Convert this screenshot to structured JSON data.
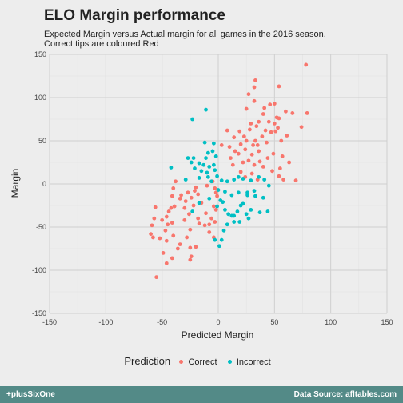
{
  "chart_data": {
    "type": "scatter",
    "title": "ELO Margin performance",
    "subtitle_line1": "Expected Margin versus Actual margin for all games in the 2016 season.",
    "subtitle_line2": "Correct tips are coloured Red",
    "xlabel": "Predicted Margin",
    "ylabel": "Margin",
    "xlim": [
      -150,
      150
    ],
    "ylim": [
      -150,
      150
    ],
    "x_ticks": [
      -150,
      -100,
      -50,
      0,
      50,
      100,
      150
    ],
    "y_ticks": [
      -150,
      -100,
      -50,
      0,
      50,
      100,
      150
    ],
    "grid": true,
    "legend_position": "bottom",
    "legend_title": "Prediction",
    "series": [
      {
        "name": "Correct",
        "color": "#f8766d",
        "points": [
          [
            78,
            138
          ],
          [
            33,
            120
          ],
          [
            32,
            112
          ],
          [
            54,
            113
          ],
          [
            27,
            104
          ],
          [
            32,
            96
          ],
          [
            46,
            92
          ],
          [
            50,
            93
          ],
          [
            66,
            82
          ],
          [
            79,
            82
          ],
          [
            60,
            84
          ],
          [
            41,
            88
          ],
          [
            25,
            87
          ],
          [
            52,
            77
          ],
          [
            54,
            76
          ],
          [
            40,
            81
          ],
          [
            45,
            72
          ],
          [
            36,
            72
          ],
          [
            29,
            70
          ],
          [
            50,
            70
          ],
          [
            53,
            65
          ],
          [
            34,
            67
          ],
          [
            42,
            62
          ],
          [
            47,
            60
          ],
          [
            74,
            66
          ],
          [
            28,
            63
          ],
          [
            19,
            61
          ],
          [
            23,
            55
          ],
          [
            39,
            55
          ],
          [
            51,
            61
          ],
          [
            61,
            56
          ],
          [
            8,
            62
          ],
          [
            14,
            54
          ],
          [
            25,
            50
          ],
          [
            33,
            50
          ],
          [
            43,
            48
          ],
          [
            31,
            45
          ],
          [
            20,
            46
          ],
          [
            10,
            43
          ],
          [
            35,
            45
          ],
          [
            56,
            50
          ],
          [
            3,
            45
          ],
          [
            15,
            38
          ],
          [
            24,
            40
          ],
          [
            36,
            38
          ],
          [
            49,
            35
          ],
          [
            30,
            34
          ],
          [
            18,
            35
          ],
          [
            44,
            30
          ],
          [
            11,
            30
          ],
          [
            27,
            27
          ],
          [
            37,
            26
          ],
          [
            57,
            32
          ],
          [
            22,
            25
          ],
          [
            32,
            22
          ],
          [
            13,
            22
          ],
          [
            40,
            20
          ],
          [
            55,
            18
          ],
          [
            63,
            25
          ],
          [
            48,
            15
          ],
          [
            30,
            12
          ],
          [
            20,
            14
          ],
          [
            54,
            9
          ],
          [
            58,
            5
          ],
          [
            69,
            4
          ],
          [
            35,
            5
          ],
          [
            24,
            8
          ],
          [
            -5,
            3
          ],
          [
            -3,
            -5
          ],
          [
            -2,
            -10
          ],
          [
            -1,
            -14
          ],
          [
            -2,
            -30
          ],
          [
            -4,
            -26
          ],
          [
            -15,
            -22
          ],
          [
            -18,
            -12
          ],
          [
            -21,
            -8
          ],
          [
            -27,
            -10
          ],
          [
            -24,
            -16
          ],
          [
            -29,
            -20
          ],
          [
            -34,
            -17
          ],
          [
            -40,
            -5
          ],
          [
            -38,
            3
          ],
          [
            -30,
            -28
          ],
          [
            -26,
            -35
          ],
          [
            -18,
            -40
          ],
          [
            -11,
            -34
          ],
          [
            -6,
            -40
          ],
          [
            -3,
            -44
          ],
          [
            -8,
            -47
          ],
          [
            -12,
            -48
          ],
          [
            -25,
            -53
          ],
          [
            -41,
            -45
          ],
          [
            -45,
            -47
          ],
          [
            -46,
            -38
          ],
          [
            -56,
            -27
          ],
          [
            -50,
            -42
          ],
          [
            -47,
            -54
          ],
          [
            -52,
            -63
          ],
          [
            -46,
            -66
          ],
          [
            -40,
            -60
          ],
          [
            -34,
            -70
          ],
          [
            -28,
            -62
          ],
          [
            -25,
            -74
          ],
          [
            -20,
            -73
          ],
          [
            -24,
            -84
          ],
          [
            -25,
            -88
          ],
          [
            -36,
            -75
          ],
          [
            -41,
            -86
          ],
          [
            -46,
            -92
          ],
          [
            -49,
            -80
          ],
          [
            -60,
            -58
          ],
          [
            -59,
            -48
          ],
          [
            -57,
            -40
          ],
          [
            -58,
            -62
          ],
          [
            -55,
            -108
          ],
          [
            -8,
            -56
          ],
          [
            -4,
            -62
          ],
          [
            -17,
            -46
          ],
          [
            -30,
            -42
          ],
          [
            -22,
            -25
          ],
          [
            -44,
            -32
          ],
          [
            -42,
            -28
          ],
          [
            -10,
            -2
          ],
          [
            -20,
            -4
          ],
          [
            -33,
            -13
          ],
          [
            -41,
            -14
          ],
          [
            -39,
            -26
          ]
        ]
      },
      {
        "name": "Incorrect",
        "color": "#00bfc4",
        "points": [
          [
            -11,
            86
          ],
          [
            -23,
            75
          ],
          [
            -12,
            48
          ],
          [
            -4,
            47
          ],
          [
            -5,
            38
          ],
          [
            -9,
            36
          ],
          [
            -2,
            32
          ],
          [
            -11,
            30
          ],
          [
            -22,
            30
          ],
          [
            -27,
            30
          ],
          [
            -24,
            25
          ],
          [
            -17,
            24
          ],
          [
            -13,
            22
          ],
          [
            -8,
            20
          ],
          [
            -4,
            22
          ],
          [
            -42,
            19
          ],
          [
            -21,
            18
          ],
          [
            -15,
            15
          ],
          [
            -10,
            13
          ],
          [
            -3,
            16
          ],
          [
            -9,
            8
          ],
          [
            -17,
            7
          ],
          [
            -29,
            5
          ],
          [
            -6,
            3
          ],
          [
            -1,
            9
          ],
          [
            3,
            4
          ],
          [
            8,
            3
          ],
          [
            14,
            5
          ],
          [
            18,
            8
          ],
          [
            22,
            6
          ],
          [
            29,
            4
          ],
          [
            36,
            8
          ],
          [
            41,
            5
          ],
          [
            45,
            -2
          ],
          [
            32,
            -8
          ],
          [
            26,
            -10
          ],
          [
            18,
            -10
          ],
          [
            12,
            -13
          ],
          [
            6,
            -9
          ],
          [
            2,
            -19
          ],
          [
            6,
            -30
          ],
          [
            9,
            -35
          ],
          [
            12,
            -37
          ],
          [
            14,
            -37
          ],
          [
            17,
            -32
          ],
          [
            20,
            -25
          ],
          [
            22,
            -23
          ],
          [
            26,
            -13
          ],
          [
            33,
            -14
          ],
          [
            40,
            -16
          ],
          [
            29,
            -30
          ],
          [
            37,
            -33
          ],
          [
            44,
            -32
          ],
          [
            25,
            -35
          ],
          [
            27,
            -40
          ],
          [
            19,
            -44
          ],
          [
            14,
            -44
          ],
          [
            8,
            -47
          ],
          [
            5,
            -54
          ],
          [
            3,
            -65
          ],
          [
            1,
            -72
          ],
          [
            -3,
            -65
          ],
          [
            -17,
            -22
          ],
          [
            -23,
            -32
          ],
          [
            -8,
            -17
          ],
          [
            -1,
            -26
          ],
          [
            4,
            -21
          ],
          [
            0,
            -7
          ]
        ]
      }
    ]
  },
  "footer": {
    "left": "+plusSixOne",
    "right": "Data Source: afltables.com"
  }
}
